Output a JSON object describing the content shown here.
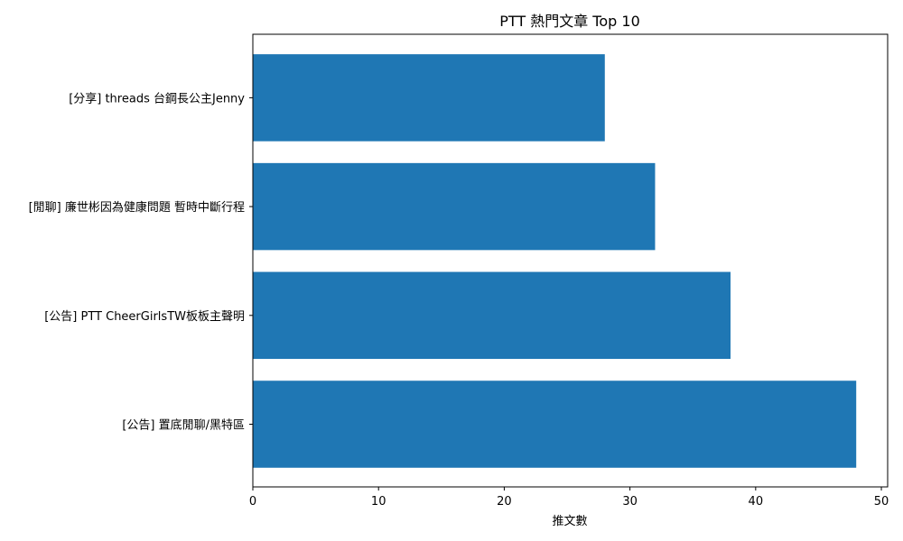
{
  "chart_data": {
    "type": "bar",
    "orientation": "horizontal",
    "title": "PTT 熱門文章 Top 10",
    "xlabel": "推文數",
    "ylabel": "",
    "xlim": [
      0,
      50.5
    ],
    "x_ticks": [
      0,
      10,
      20,
      30,
      40,
      50
    ],
    "grid": false,
    "legend": "none",
    "bar_color": "#1f77b4",
    "categories": [
      "[公告] 置底閒聊/黑特區",
      "[公告] PTT CheerGirlsTW板板主聲明",
      "[閒聊] 廉世彬因為健康問題 暫時中斷行程",
      "[分享] threads 台鋼長公主Jenny"
    ],
    "values": [
      48,
      38,
      32,
      28
    ]
  }
}
